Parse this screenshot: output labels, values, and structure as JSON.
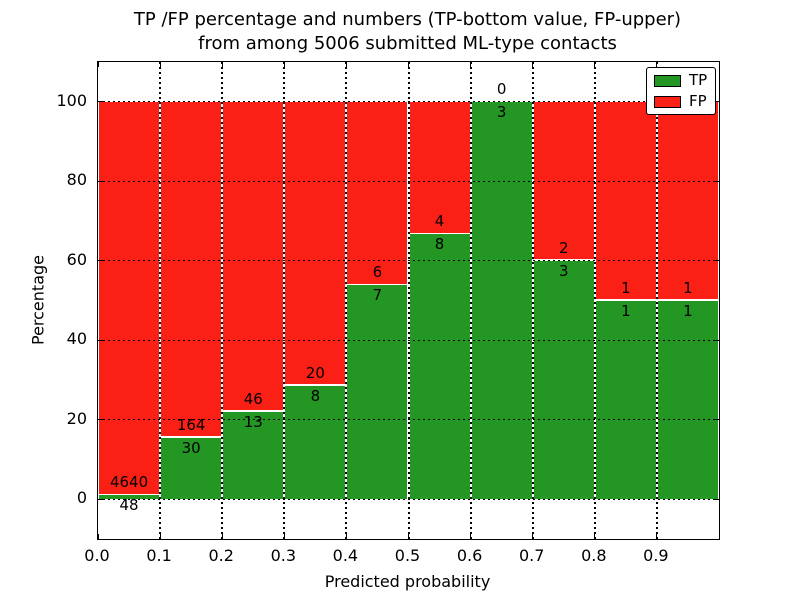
{
  "title": {
    "line1": "TP /FP percentage and numbers (TP-bottom value, FP-upper)",
    "line2": "from among 5006 submitted ML-type contacts"
  },
  "legend": {
    "items": [
      {
        "label": "TP",
        "color": "#239623"
      },
      {
        "label": "FP",
        "color": "#fb2016"
      }
    ]
  },
  "chart_data": {
    "type": "bar",
    "stacked": true,
    "orientation": "vertical",
    "title": "TP /FP percentage and numbers (TP-bottom value, FP-upper) from among 5006 submitted ML-type contacts",
    "xlabel": "Predicted probability",
    "ylabel": "Percentage",
    "xlim": [
      0.0,
      1.0
    ],
    "ylim": [
      -10,
      110
    ],
    "grid": true,
    "legend_position": "upper right",
    "bin_edges": [
      0.0,
      0.1,
      0.2,
      0.3,
      0.4,
      0.5,
      0.6,
      0.7,
      0.8,
      0.9,
      1.0
    ],
    "x_tick_labels": [
      "0.0",
      "0.1",
      "0.2",
      "0.3",
      "0.4",
      "0.5",
      "0.6",
      "0.7",
      "0.8",
      "0.9"
    ],
    "y_tick_values": [
      0,
      20,
      40,
      60,
      80,
      100
    ],
    "y_tick_labels": [
      "0",
      "20",
      "40",
      "60",
      "80",
      "100"
    ],
    "series": [
      {
        "name": "TP",
        "color": "#239623",
        "counts": [
          48,
          30,
          13,
          8,
          7,
          8,
          3,
          3,
          1,
          1
        ],
        "pct": [
          1.02,
          15.46,
          22.03,
          28.57,
          53.85,
          66.67,
          100.0,
          60.0,
          50.0,
          50.0
        ]
      },
      {
        "name": "FP",
        "color": "#fb2016",
        "counts": [
          4640,
          164,
          46,
          20,
          6,
          4,
          0,
          2,
          1,
          1
        ],
        "pct": [
          98.98,
          84.54,
          77.97,
          71.43,
          46.15,
          33.33,
          0.0,
          40.0,
          50.0,
          50.0
        ]
      }
    ],
    "total_contacts": 5006
  }
}
